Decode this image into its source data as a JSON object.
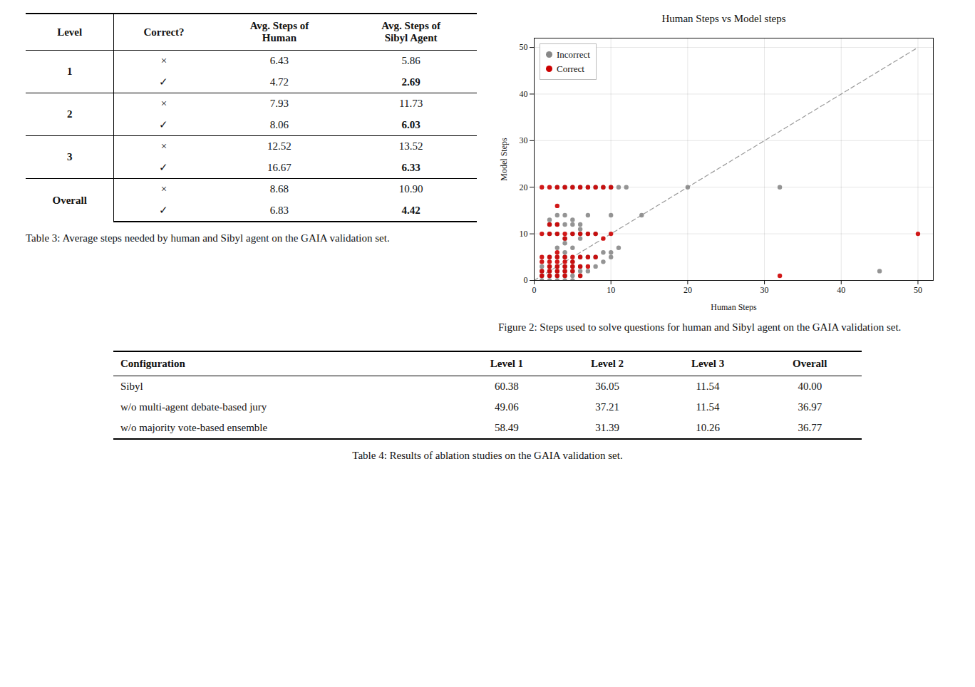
{
  "chart_data": [
    {
      "type": "table",
      "columns": [
        "Level",
        "Correct?",
        "Avg. Steps of\nHuman",
        "Avg. Steps of\nSibyl Agent"
      ],
      "subrows": [
        "×",
        "✓"
      ],
      "rows": [
        {
          "level": "1",
          "values": [
            [
              "6.43",
              "5.86"
            ],
            [
              "4.72",
              "2.69"
            ]
          ]
        },
        {
          "level": "2",
          "values": [
            [
              "7.93",
              "11.73"
            ],
            [
              "8.06",
              "6.03"
            ]
          ]
        },
        {
          "level": "3",
          "values": [
            [
              "12.52",
              "13.52"
            ],
            [
              "16.67",
              "6.33"
            ]
          ]
        },
        {
          "level": "Overall",
          "values": [
            [
              "8.68",
              "10.90"
            ],
            [
              "6.83",
              "4.42"
            ]
          ]
        }
      ],
      "bold": [
        "2.69",
        "6.03",
        "6.33",
        "4.42"
      ],
      "caption": "Table 3: Average steps needed by human and Sibyl agent on the GAIA validation set."
    },
    {
      "type": "scatter",
      "title": "Human Steps vs Model steps",
      "xlabel": "Human Steps",
      "ylabel": "Model Steps",
      "xlim": [
        0,
        52
      ],
      "ylim": [
        0,
        52
      ],
      "xticks": [
        0,
        10,
        20,
        30,
        40,
        50
      ],
      "yticks": [
        0,
        10,
        20,
        30,
        40,
        50
      ],
      "grid": true,
      "legend": "upper left",
      "series": [
        {
          "name": "Incorrect",
          "color": "#888888",
          "x": [
            1,
            1,
            1,
            1,
            2,
            2,
            2,
            2,
            2,
            2,
            2,
            2,
            3,
            3,
            3,
            3,
            3,
            3,
            3,
            3,
            3,
            3,
            4,
            4,
            4,
            4,
            4,
            4,
            4,
            4,
            4,
            4,
            4,
            5,
            5,
            5,
            5,
            5,
            5,
            5,
            5,
            5,
            5,
            6,
            6,
            6,
            6,
            6,
            6,
            6,
            6,
            6,
            7,
            7,
            7,
            7,
            7,
            8,
            8,
            8,
            8,
            9,
            9,
            9,
            10,
            10,
            10,
            10,
            11,
            11,
            12,
            14,
            20,
            45,
            32
          ],
          "y": [
            0,
            1,
            2,
            3,
            0,
            1,
            2,
            3,
            5,
            10,
            12,
            13,
            0,
            1,
            2,
            3,
            5,
            7,
            10,
            12,
            14,
            20,
            0,
            1,
            2,
            3,
            5,
            6,
            8,
            9,
            12,
            14,
            20,
            0,
            1,
            2,
            3,
            4,
            7,
            10,
            12,
            13,
            20,
            1,
            2,
            3,
            5,
            9,
            10,
            11,
            12,
            20,
            2,
            5,
            10,
            14,
            20,
            3,
            5,
            10,
            20,
            4,
            6,
            20,
            5,
            6,
            14,
            20,
            7,
            20,
            20,
            14,
            20,
            2,
            20
          ]
        },
        {
          "name": "Correct",
          "color": "#cc0000",
          "x": [
            1,
            1,
            1,
            1,
            1,
            1,
            2,
            2,
            2,
            2,
            2,
            2,
            2,
            2,
            3,
            3,
            3,
            3,
            3,
            3,
            3,
            3,
            3,
            3,
            4,
            4,
            4,
            4,
            4,
            4,
            4,
            4,
            5,
            5,
            5,
            5,
            5,
            5,
            6,
            6,
            6,
            6,
            6,
            7,
            7,
            7,
            7,
            8,
            8,
            8,
            9,
            9,
            10,
            10,
            32,
            50
          ],
          "y": [
            1,
            2,
            4,
            5,
            10,
            20,
            1,
            2,
            3,
            4,
            5,
            10,
            12,
            20,
            1,
            2,
            3,
            4,
            5,
            6,
            10,
            12,
            16,
            20,
            1,
            2,
            3,
            4,
            5,
            9,
            10,
            20,
            2,
            3,
            4,
            5,
            10,
            20,
            1,
            3,
            5,
            10,
            20,
            3,
            5,
            10,
            20,
            5,
            10,
            20,
            9,
            20,
            10,
            20,
            1,
            10
          ]
        },
        {
          "type": "line",
          "line_style": "dashed",
          "color": "gray",
          "x": [
            0,
            50
          ],
          "y": [
            0,
            50
          ]
        }
      ],
      "caption": "Figure 2: Steps used to solve questions for human and Sibyl agent on the GAIA validation set."
    },
    {
      "type": "table",
      "columns": [
        "Configuration",
        "Level 1",
        "Level 2",
        "Level 3",
        "Overall"
      ],
      "rows": [
        [
          "Sibyl",
          "60.38",
          "36.05",
          "11.54",
          "40.00"
        ],
        [
          "w/o multi-agent debate-based jury",
          "49.06",
          "37.21",
          "11.54",
          "36.97"
        ],
        [
          "w/o majority vote-based ensemble",
          "58.49",
          "31.39",
          "10.26",
          "36.77"
        ]
      ],
      "caption": "Table 4: Results of ablation studies on the GAIA validation set."
    }
  ]
}
